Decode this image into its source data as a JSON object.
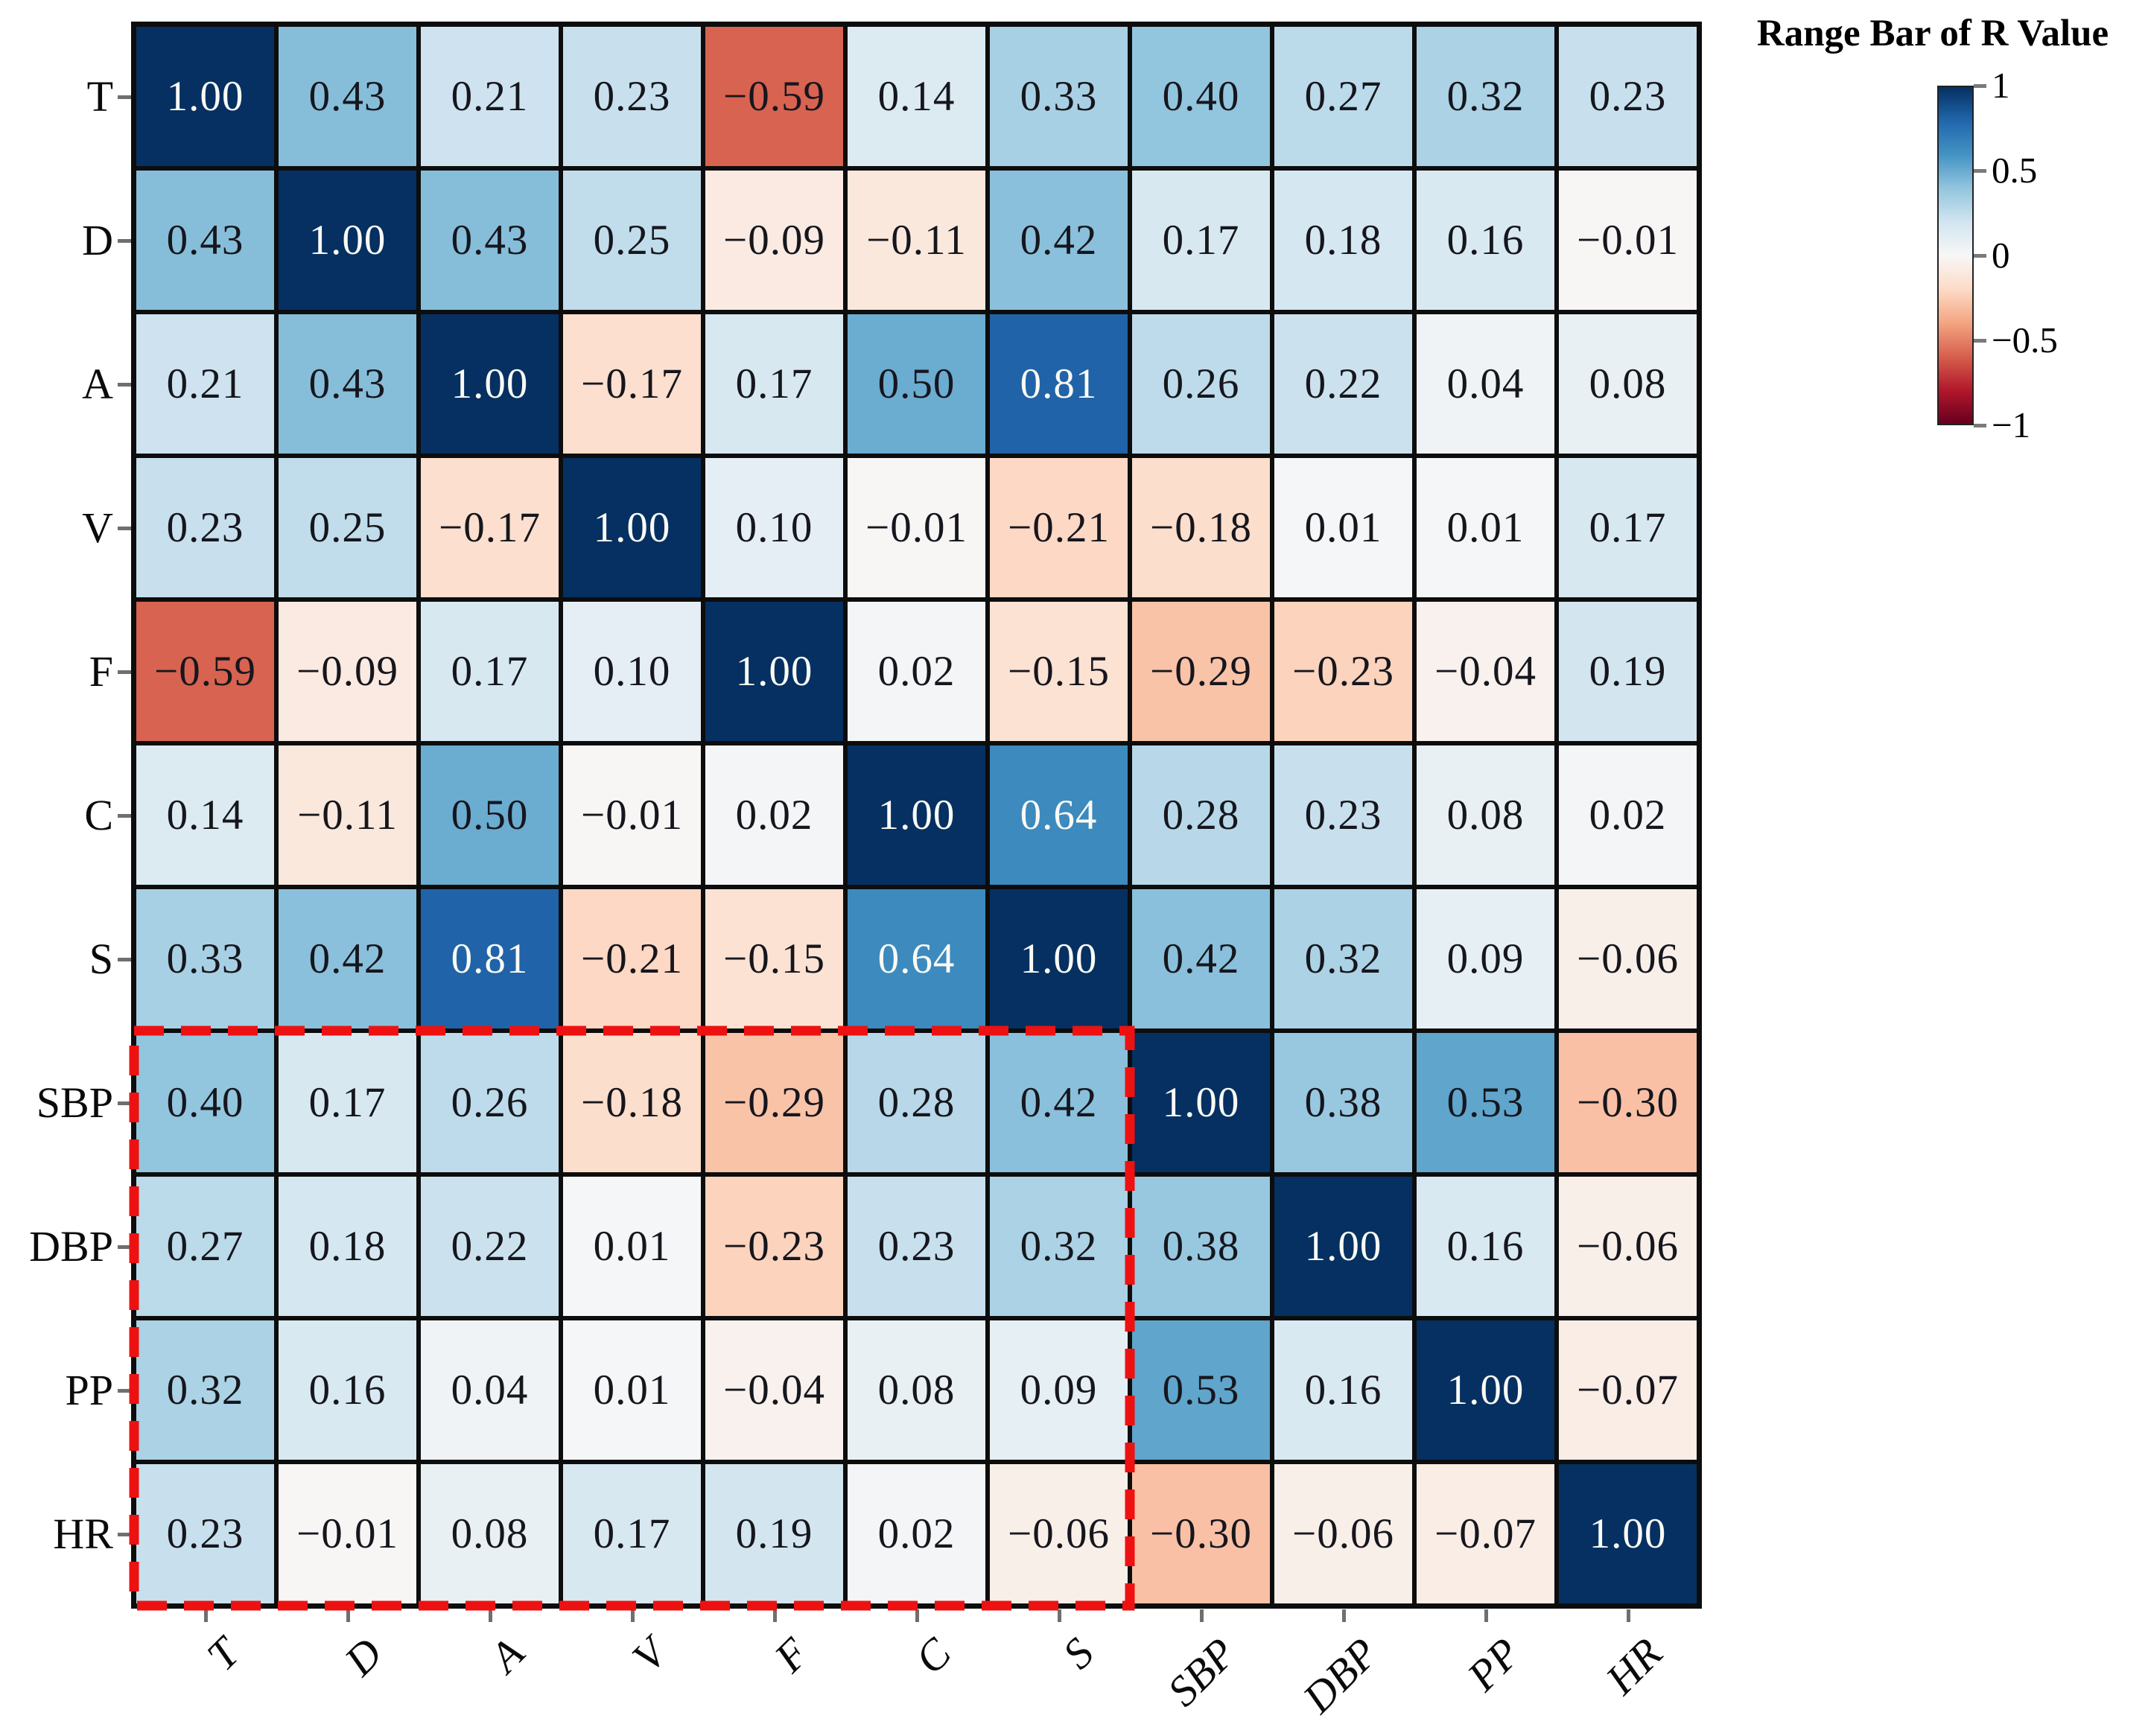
{
  "chart_data": {
    "type": "heatmap",
    "title": "",
    "xlabel": "",
    "ylabel": "",
    "categories": [
      "T",
      "D",
      "A",
      "V",
      "F",
      "C",
      "S",
      "SBP",
      "DBP",
      "PP",
      "HR"
    ],
    "matrix": [
      [
        1.0,
        0.43,
        0.21,
        0.23,
        -0.59,
        0.14,
        0.33,
        0.4,
        0.27,
        0.32,
        0.23
      ],
      [
        0.43,
        1.0,
        0.43,
        0.25,
        -0.09,
        -0.11,
        0.42,
        0.17,
        0.18,
        0.16,
        -0.01
      ],
      [
        0.21,
        0.43,
        1.0,
        -0.17,
        0.17,
        0.5,
        0.81,
        0.26,
        0.22,
        0.04,
        0.08
      ],
      [
        0.23,
        0.25,
        -0.17,
        1.0,
        0.1,
        -0.01,
        -0.21,
        -0.18,
        0.01,
        0.01,
        0.17
      ],
      [
        -0.59,
        -0.09,
        0.17,
        0.1,
        1.0,
        0.02,
        -0.15,
        -0.29,
        -0.23,
        -0.04,
        0.19
      ],
      [
        0.14,
        -0.11,
        0.5,
        -0.01,
        0.02,
        1.0,
        0.64,
        0.28,
        0.23,
        0.08,
        0.02
      ],
      [
        0.33,
        0.42,
        0.81,
        -0.21,
        -0.15,
        0.64,
        1.0,
        0.42,
        0.32,
        0.09,
        -0.06
      ],
      [
        0.4,
        0.17,
        0.26,
        -0.18,
        -0.29,
        0.28,
        0.42,
        1.0,
        0.38,
        0.53,
        -0.3
      ],
      [
        0.27,
        0.18,
        0.22,
        0.01,
        -0.23,
        0.23,
        0.32,
        0.38,
        1.0,
        0.16,
        -0.06
      ],
      [
        0.32,
        0.16,
        0.04,
        0.01,
        -0.04,
        0.08,
        0.09,
        0.53,
        0.16,
        1.0,
        -0.07
      ],
      [
        0.23,
        -0.01,
        0.08,
        0.17,
        0.19,
        0.02,
        -0.06,
        -0.3,
        -0.06,
        -0.07,
        1.0
      ]
    ],
    "value_range": [
      -1,
      1
    ],
    "grid": true,
    "legend_position": "top-right",
    "colormap_stops": [
      [
        -1.0,
        "#67001f"
      ],
      [
        -0.8,
        "#b2182b"
      ],
      [
        -0.6,
        "#d6604d"
      ],
      [
        -0.4,
        "#f4a582"
      ],
      [
        -0.2,
        "#fddbc7"
      ],
      [
        0.0,
        "#f7f7f7"
      ],
      [
        0.2,
        "#d1e5f0"
      ],
      [
        0.4,
        "#92c5de"
      ],
      [
        0.6,
        "#4393c3"
      ],
      [
        0.8,
        "#2166ac"
      ],
      [
        1.0,
        "#053061"
      ]
    ]
  },
  "colorbar": {
    "title": "Range Bar of R Value",
    "ticks": [
      {
        "value": 1,
        "label": "1"
      },
      {
        "value": 0.5,
        "label": "0.5"
      },
      {
        "value": 0,
        "label": "0"
      },
      {
        "value": -0.5,
        "label": "−0.5"
      },
      {
        "value": -1,
        "label": "−1"
      }
    ]
  },
  "highlight": {
    "rows": [
      "SBP",
      "DBP",
      "PP",
      "HR"
    ],
    "cols": [
      "T",
      "D",
      "A",
      "V",
      "F",
      "C",
      "S"
    ],
    "color": "#ee1111",
    "style": "dashed"
  },
  "text_colors": {
    "dark": "#16161d",
    "light": "#fafaf5",
    "light_threshold": 0.6
  }
}
